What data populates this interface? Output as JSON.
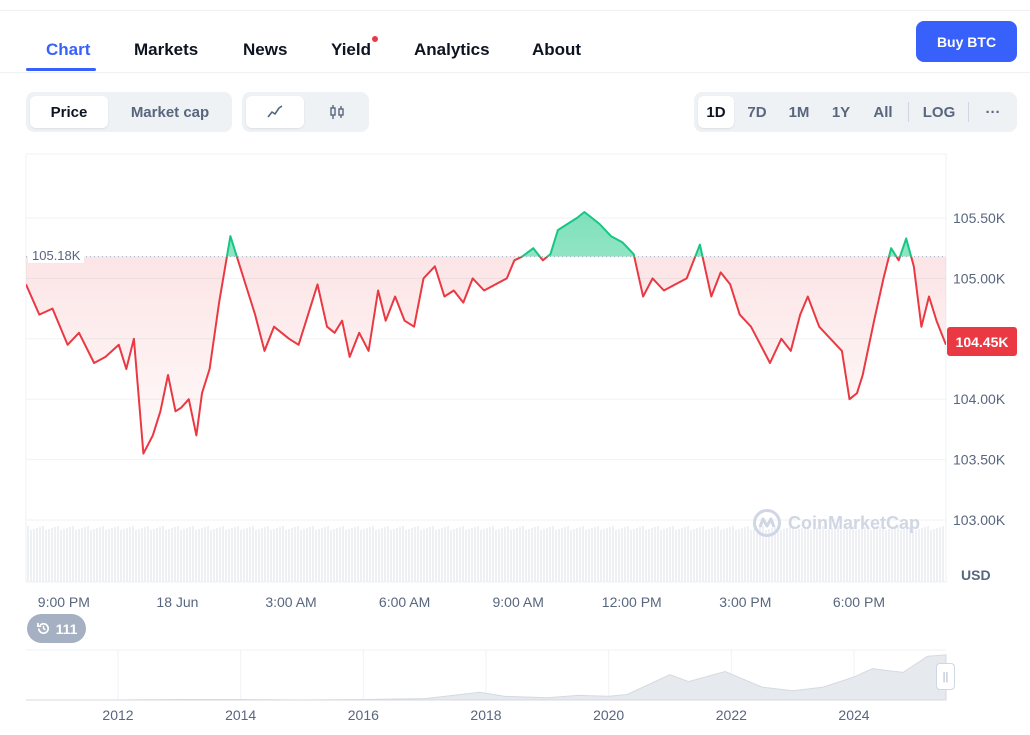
{
  "nav": {
    "tabs": [
      {
        "label": "Chart"
      },
      {
        "label": "Markets"
      },
      {
        "label": "News"
      },
      {
        "label": "Yield"
      },
      {
        "label": "Analytics"
      },
      {
        "label": "About"
      }
    ],
    "buy_label": "Buy BTC"
  },
  "toolbar": {
    "price_label": "Price",
    "marketcap_label": "Market cap",
    "line_icon": "line-chart-icon",
    "candle_icon": "candlestick-icon",
    "ranges": [
      "1D",
      "7D",
      "1M",
      "1Y",
      "All"
    ],
    "active_range": "1D",
    "log_label": "LOG",
    "more_label": "···"
  },
  "chart": {
    "current_price_label": "104.45K",
    "reference_label": "105.18K",
    "currency_label": "USD",
    "watermark": "CoinMarketCap",
    "history_count": "111",
    "colors": {
      "up": "#16c784",
      "down": "#ea3943",
      "accent": "#3861fb"
    }
  },
  "chart_data": {
    "type": "line",
    "ylabel": "USD",
    "reference_value": 105180,
    "current_value": 104450,
    "ylim": [
      102900,
      106100
    ],
    "yticks": [
      103000,
      103500,
      104000,
      104500,
      105000,
      105500
    ],
    "ytick_labels": [
      "103.00K",
      "103.50K",
      "104.00K",
      "",
      "105.00K",
      "105.50K"
    ],
    "xtick_labels": [
      "9:00 PM",
      "18 Jun",
      "3:00 AM",
      "6:00 AM",
      "9:00 AM",
      "12:00 PM",
      "3:00 PM",
      "6:00 PM"
    ],
    "xtick_hours": [
      1,
      4,
      7,
      10,
      13,
      16,
      19,
      22
    ],
    "x_hours": [
      0,
      0.35,
      0.7,
      1.1,
      1.4,
      1.8,
      2.1,
      2.45,
      2.65,
      2.85,
      3.1,
      3.35,
      3.55,
      3.75,
      3.95,
      4.1,
      4.3,
      4.5,
      4.65,
      4.85,
      5.1,
      5.4,
      5.7,
      5.85,
      6.05,
      6.3,
      6.55,
      6.75,
      6.95,
      7.2,
      7.45,
      7.7,
      7.95,
      8.15,
      8.35,
      8.55,
      8.8,
      9.05,
      9.3,
      9.5,
      9.75,
      10,
      10.25,
      10.5,
      10.8,
      11.05,
      11.3,
      11.55,
      11.8,
      12.1,
      12.4,
      12.7,
      12.9,
      13.1,
      13.4,
      13.65,
      13.85,
      14.05,
      14.3,
      14.55,
      14.75,
      14.95,
      15.15,
      15.45,
      15.75,
      16.05,
      16.3,
      16.55,
      16.85,
      17.15,
      17.45,
      17.8,
      18.1,
      18.35,
      18.6,
      18.85,
      19.15,
      19.4,
      19.65,
      19.95,
      20.2,
      20.45,
      20.65,
      20.95,
      21.25,
      21.55,
      21.75,
      21.95,
      22.1,
      22.4,
      22.65,
      22.85,
      23.05,
      23.25,
      23.45,
      23.65,
      23.85,
      24.05,
      24.3
    ],
    "prices": [
      104950,
      104700,
      104750,
      104450,
      104550,
      104300,
      104350,
      104450,
      104250,
      104500,
      103550,
      103700,
      103900,
      104200,
      103900,
      103930,
      104000,
      103700,
      104050,
      104250,
      104800,
      105350,
      105050,
      104900,
      104700,
      104400,
      104600,
      104550,
      104500,
      104450,
      104700,
      104950,
      104600,
      104550,
      104650,
      104350,
      104550,
      104400,
      104900,
      104650,
      104850,
      104650,
      104600,
      105000,
      105100,
      104850,
      104900,
      104800,
      105000,
      104900,
      104950,
      105000,
      105150,
      105180,
      105250,
      105150,
      105200,
      105400,
      105450,
      105500,
      105550,
      105500,
      105450,
      105350,
      105300,
      105200,
      104850,
      105000,
      104900,
      104950,
      105000,
      105280,
      104850,
      105050,
      104950,
      104700,
      104600,
      104450,
      104300,
      104500,
      104400,
      104700,
      104850,
      104600,
      104500,
      104400,
      104000,
      104050,
      104200,
      104650,
      105000,
      105250,
      105150,
      105330,
      105100,
      104600,
      104850,
      104650,
      104450
    ],
    "volume_note": "",
    "overview": {
      "type": "area",
      "xtick_labels": [
        "2012",
        "2014",
        "2016",
        "2018",
        "2020",
        "2022",
        "2024"
      ],
      "years": [
        2010.5,
        2011,
        2012,
        2013,
        2014,
        2015,
        2016,
        2017,
        2017.9,
        2018.3,
        2019,
        2019.5,
        2020,
        2020.3,
        2021,
        2021.3,
        2021.9,
        2022.5,
        2023,
        2023.5,
        2024,
        2024.3,
        2024.8,
        2025.2,
        2025.5
      ],
      "values": [
        0,
        0,
        0,
        0.01,
        0.01,
        0,
        0.01,
        0.03,
        0.17,
        0.08,
        0.05,
        0.1,
        0.08,
        0.12,
        0.55,
        0.4,
        0.62,
        0.28,
        0.2,
        0.28,
        0.5,
        0.68,
        0.6,
        0.95,
        0.98
      ]
    }
  }
}
